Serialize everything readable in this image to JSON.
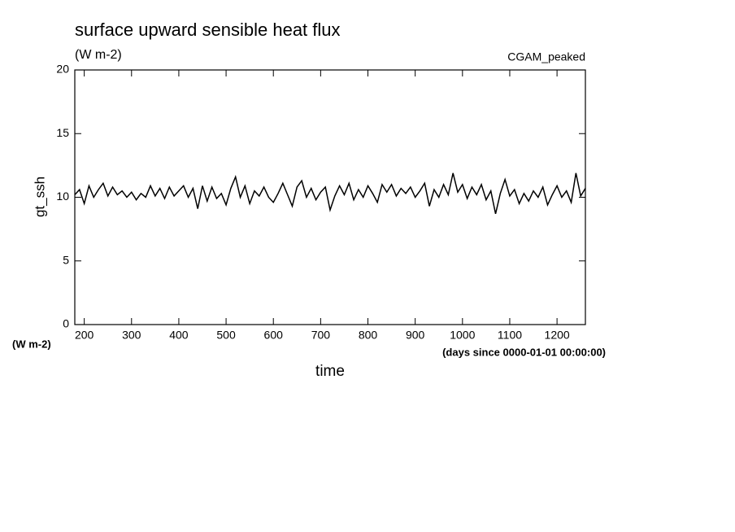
{
  "chart_data": {
    "type": "line",
    "title": "surface upward sensible heat flux",
    "subtitle": "(W m-2)",
    "annotation": "CGAM_peaked",
    "y_label": "gt_ssh",
    "y_units": "(W m-2)",
    "x_units": "(days since 0000-01-01 00:00:00)",
    "x_label": "time",
    "color": "#000000",
    "x": [
      180,
      190,
      200,
      210,
      220,
      230,
      240,
      250,
      260,
      270,
      280,
      290,
      300,
      310,
      320,
      330,
      340,
      350,
      360,
      370,
      380,
      390,
      400,
      410,
      420,
      430,
      440,
      450,
      460,
      470,
      480,
      490,
      500,
      510,
      520,
      530,
      540,
      550,
      560,
      570,
      580,
      590,
      600,
      610,
      620,
      630,
      640,
      650,
      660,
      670,
      680,
      690,
      700,
      710,
      720,
      730,
      740,
      750,
      760,
      770,
      780,
      790,
      800,
      810,
      820,
      830,
      840,
      850,
      860,
      870,
      880,
      890,
      900,
      910,
      920,
      930,
      940,
      950,
      960,
      970,
      980,
      990,
      1000,
      1010,
      1020,
      1030,
      1040,
      1050,
      1060,
      1070,
      1080,
      1090,
      1100,
      1110,
      1120,
      1130,
      1140,
      1150,
      1160,
      1170,
      1180,
      1190,
      1200,
      1210,
      1220,
      1230,
      1240,
      1250,
      1260
    ],
    "values": [
      10.2,
      10.6,
      9.5,
      10.9,
      10.0,
      10.6,
      11.1,
      10.1,
      10.8,
      10.2,
      10.5,
      10.0,
      10.4,
      9.8,
      10.3,
      10.0,
      10.9,
      10.1,
      10.7,
      9.9,
      10.8,
      10.1,
      10.5,
      10.9,
      10.0,
      10.7,
      9.1,
      10.9,
      9.7,
      10.8,
      9.9,
      10.3,
      9.4,
      10.7,
      11.6,
      10.0,
      10.9,
      9.5,
      10.5,
      10.1,
      10.8,
      10.0,
      9.6,
      10.3,
      11.1,
      10.2,
      9.3,
      10.8,
      11.3,
      10.0,
      10.7,
      9.8,
      10.4,
      10.8,
      9.0,
      10.1,
      10.9,
      10.2,
      11.1,
      9.8,
      10.6,
      10.0,
      10.9,
      10.3,
      9.6,
      11.0,
      10.4,
      11.0,
      10.1,
      10.7,
      10.3,
      10.8,
      10.0,
      10.5,
      11.1,
      9.3,
      10.6,
      10.0,
      11.0,
      10.2,
      11.9,
      10.4,
      11.0,
      9.9,
      10.8,
      10.2,
      11.0,
      9.8,
      10.5,
      8.7,
      10.3,
      11.4,
      10.1,
      10.6,
      9.5,
      10.3,
      9.7,
      10.5,
      10.0,
      10.8,
      9.4,
      10.2,
      10.9,
      10.0,
      10.5,
      9.6,
      11.9,
      10.1,
      10.7
    ],
    "xlim": [
      180,
      1260
    ],
    "ylim": [
      0,
      20
    ],
    "xticks": [
      200,
      300,
      400,
      500,
      600,
      700,
      800,
      900,
      1000,
      1100,
      1200
    ],
    "yticks": [
      0,
      5,
      10,
      15,
      20
    ]
  }
}
